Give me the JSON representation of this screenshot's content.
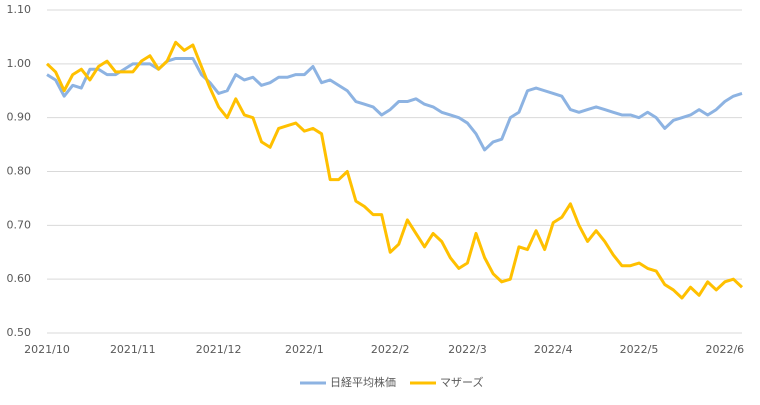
{
  "chart_data": {
    "type": "line",
    "categories": [
      "2021/10",
      null,
      null,
      null,
      null,
      null,
      null,
      null,
      null,
      null,
      "2021/11",
      null,
      null,
      null,
      null,
      null,
      null,
      null,
      null,
      null,
      "2021/12",
      null,
      null,
      null,
      null,
      null,
      null,
      null,
      null,
      null,
      "2022/1",
      null,
      null,
      null,
      null,
      null,
      null,
      null,
      null,
      null,
      "2022/2",
      null,
      null,
      null,
      null,
      null,
      null,
      null,
      null,
      "2022/3",
      null,
      null,
      null,
      null,
      null,
      null,
      null,
      null,
      null,
      "2022/4",
      null,
      null,
      null,
      null,
      null,
      null,
      null,
      null,
      null,
      "2022/5",
      null,
      null,
      null,
      null,
      null,
      null,
      null,
      null,
      null,
      "2022/6",
      null,
      null
    ],
    "series": [
      {
        "name": "日経平均株価",
        "color": "#8DB3E2",
        "values": [
          0.98,
          0.97,
          0.94,
          0.96,
          0.955,
          0.99,
          0.99,
          0.98,
          0.98,
          0.99,
          1.0,
          1.0,
          1.0,
          0.99,
          1.005,
          1.01,
          1.01,
          1.01,
          0.98,
          0.965,
          0.945,
          0.95,
          0.98,
          0.97,
          0.975,
          0.96,
          0.965,
          0.975,
          0.975,
          0.98,
          0.98,
          0.995,
          0.965,
          0.97,
          0.96,
          0.95,
          0.93,
          0.925,
          0.92,
          0.905,
          0.915,
          0.93,
          0.93,
          0.935,
          0.925,
          0.92,
          0.91,
          0.905,
          0.9,
          0.89,
          0.87,
          0.84,
          0.855,
          0.86,
          0.9,
          0.91,
          0.95,
          0.955,
          0.95,
          0.945,
          0.94,
          0.915,
          0.91,
          0.915,
          0.92,
          0.915,
          0.91,
          0.905,
          0.905,
          0.9,
          0.91,
          0.9,
          0.88,
          0.895,
          0.9,
          0.905,
          0.915,
          0.905,
          0.915,
          0.93,
          0.94,
          0.945
        ]
      },
      {
        "name": "マザーズ",
        "color": "#FFC000",
        "values": [
          1.0,
          0.985,
          0.95,
          0.98,
          0.99,
          0.97,
          0.995,
          1.005,
          0.985,
          0.985,
          0.985,
          1.005,
          1.015,
          0.99,
          1.005,
          1.04,
          1.025,
          1.035,
          0.995,
          0.955,
          0.92,
          0.9,
          0.935,
          0.905,
          0.9,
          0.855,
          0.845,
          0.88,
          0.885,
          0.89,
          0.875,
          0.88,
          0.87,
          0.785,
          0.785,
          0.8,
          0.745,
          0.735,
          0.72,
          0.72,
          0.65,
          0.665,
          0.71,
          0.685,
          0.66,
          0.685,
          0.67,
          0.64,
          0.62,
          0.63,
          0.685,
          0.64,
          0.61,
          0.595,
          0.6,
          0.66,
          0.655,
          0.69,
          0.655,
          0.705,
          0.715,
          0.74,
          0.7,
          0.67,
          0.69,
          0.67,
          0.645,
          0.625,
          0.625,
          0.63,
          0.62,
          0.615,
          0.59,
          0.58,
          0.565,
          0.585,
          0.57,
          0.595,
          0.58,
          0.595,
          0.6,
          0.585
        ]
      }
    ],
    "ylim": [
      0.5,
      1.1
    ],
    "yticks": [
      {
        "value": 0.5,
        "label": "0.50"
      },
      {
        "value": 0.6,
        "label": "0.60"
      },
      {
        "value": 0.7,
        "label": "0.70"
      },
      {
        "value": 0.8,
        "label": "0.80"
      },
      {
        "value": 0.9,
        "label": "0.90"
      },
      {
        "value": 1.0,
        "label": "1.00"
      },
      {
        "value": 1.1,
        "label": "1.10"
      }
    ],
    "grid": true,
    "legend": "bottom"
  }
}
